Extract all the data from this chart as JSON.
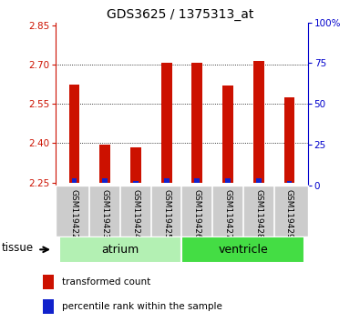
{
  "title": "GDS3625 / 1375313_at",
  "samples": [
    "GSM119422",
    "GSM119423",
    "GSM119424",
    "GSM119425",
    "GSM119426",
    "GSM119427",
    "GSM119428",
    "GSM119429"
  ],
  "red_values": [
    2.625,
    2.395,
    2.385,
    2.705,
    2.705,
    2.62,
    2.715,
    2.575
  ],
  "blue_values": [
    2.265,
    2.265,
    2.255,
    2.265,
    2.265,
    2.265,
    2.265,
    2.255
  ],
  "baseline": 2.25,
  "ylim_left": [
    2.24,
    2.86
  ],
  "ylim_right": [
    0,
    100
  ],
  "yticks_left": [
    2.25,
    2.4,
    2.55,
    2.7,
    2.85
  ],
  "yticks_right": [
    0,
    25,
    50,
    75,
    100
  ],
  "ytick_right_labels": [
    "0",
    "25",
    "50",
    "75",
    "100%"
  ],
  "tissue_groups": [
    {
      "label": "atrium",
      "samples": [
        0,
        1,
        2,
        3
      ],
      "color": "#b3f0b3"
    },
    {
      "label": "ventricle",
      "samples": [
        4,
        5,
        6,
        7
      ],
      "color": "#44dd44"
    }
  ],
  "tissue_label": "tissue",
  "legend": [
    {
      "label": "transformed count",
      "color": "#cc1100"
    },
    {
      "label": "percentile rank within the sample",
      "color": "#1122cc"
    }
  ],
  "bar_width": 0.35,
  "red_color": "#cc1100",
  "blue_color": "#1122cc",
  "left_tick_color": "#cc1100",
  "right_tick_color": "#0000cc",
  "bg_plot": "#ffffff",
  "bg_xaxis": "#cccccc",
  "grid_yticks": [
    2.55,
    2.4,
    2.7
  ]
}
